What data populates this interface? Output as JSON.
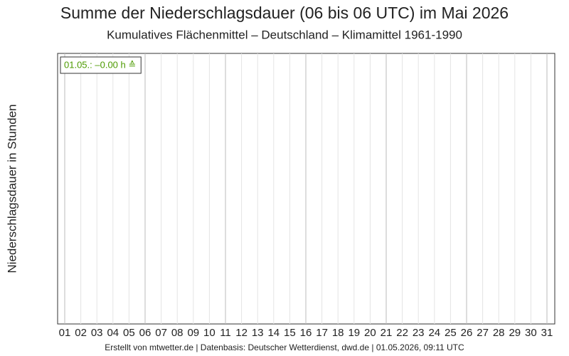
{
  "chart_data": {
    "type": "line",
    "title": "Summe der Niederschlagsdauer (06 bis 06 UTC) im Mai 2026",
    "subtitle": "Kumulatives Flächenmittel – Deutschland – Klimamittel 1961-1990",
    "y_label": "Niederschlagsdauer in Stunden",
    "categories": [
      "01",
      "02",
      "03",
      "04",
      "05",
      "06",
      "07",
      "08",
      "09",
      "10",
      "11",
      "12",
      "13",
      "14",
      "15",
      "16",
      "17",
      "18",
      "19",
      "20",
      "21",
      "22",
      "23",
      "24",
      "25",
      "26",
      "27",
      "28",
      "29",
      "30",
      "31"
    ],
    "annotation": "01.05.: –0.00 h ≙",
    "annotation_color": "#4c9a00",
    "grid": true,
    "footer": "Erstellt von mtwetter.de | Datenbasis: Deutscher Wetterdienst, dwd.de | 01.05.2026, 09:11 UTC"
  }
}
